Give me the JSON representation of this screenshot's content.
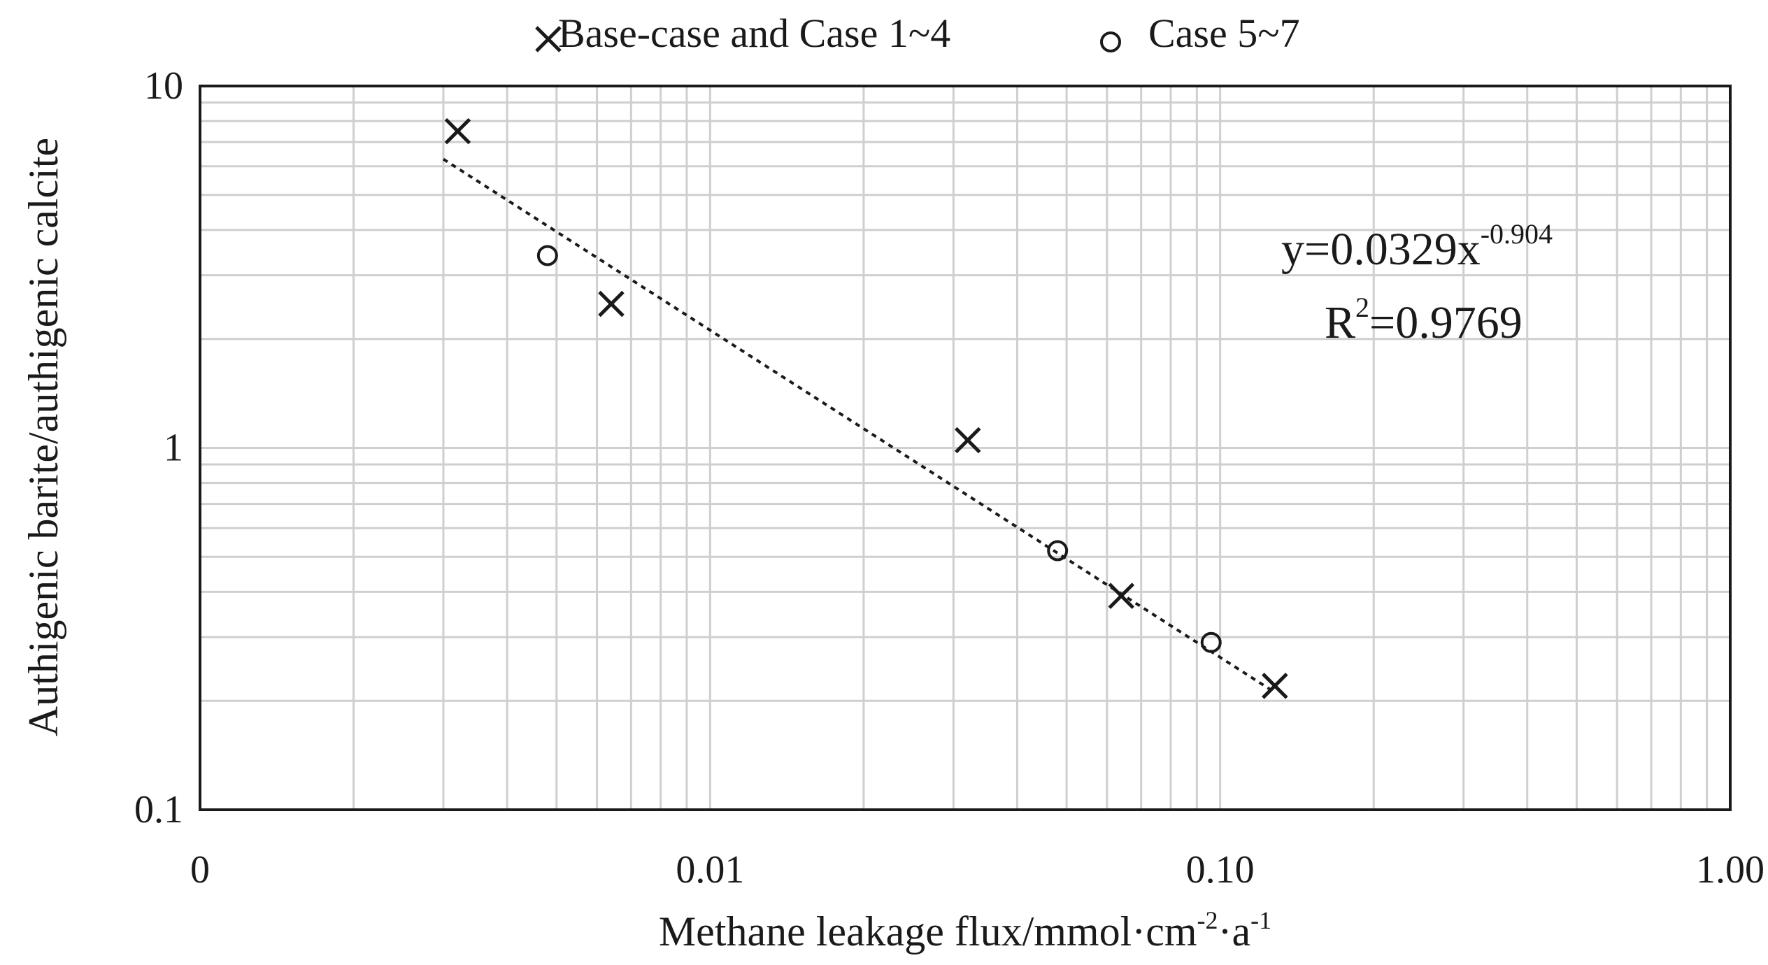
{
  "chart_data": {
    "type": "scatter",
    "xscale": "log",
    "yscale": "log",
    "xlim": [
      0.001,
      1.0
    ],
    "ylim": [
      0.1,
      10
    ],
    "grid": true,
    "legend_position": "top-center",
    "xlabel": {
      "main": "Methane leakage flux/mmol·cm",
      "sup1": "-2",
      "mid": "·a",
      "sup2": "-1"
    },
    "ylabel": "Authigenic barite/authigenic calcite",
    "x_ticks": [
      {
        "value": 0.001,
        "label": "0"
      },
      {
        "value": 0.01,
        "label": "0.01"
      },
      {
        "value": 0.1,
        "label": "0.10"
      },
      {
        "value": 1.0,
        "label": "1.00"
      }
    ],
    "y_ticks": [
      {
        "value": 0.1,
        "label": "0.1"
      },
      {
        "value": 1,
        "label": "1"
      },
      {
        "value": 10,
        "label": "10"
      }
    ],
    "series": [
      {
        "name": "Base-case and Case 1~4",
        "marker": "x",
        "points": [
          {
            "x": 0.0032,
            "y": 7.5
          },
          {
            "x": 0.0064,
            "y": 2.5
          },
          {
            "x": 0.032,
            "y": 1.05
          },
          {
            "x": 0.064,
            "y": 0.39
          },
          {
            "x": 0.128,
            "y": 0.22
          }
        ]
      },
      {
        "name": "Case 5~7",
        "marker": "circle",
        "points": [
          {
            "x": 0.0048,
            "y": 3.4
          },
          {
            "x": 0.048,
            "y": 0.52
          },
          {
            "x": 0.096,
            "y": 0.29
          }
        ]
      }
    ],
    "trendline": {
      "type": "power",
      "a": 0.0329,
      "b": -0.904,
      "x_range": [
        0.003,
        0.128
      ],
      "style": "dotted"
    },
    "annotation": {
      "equation_main": "y=0.0329x",
      "equation_exp": "-0.904",
      "r2_main": "R",
      "r2_sup": "2",
      "r2_value": "=0.9769"
    }
  },
  "colors": {
    "axis": "#1a1a1a",
    "grid": "#cfcfcf",
    "marker": "#1a1a1a",
    "trendline": "#1a1a1a"
  }
}
